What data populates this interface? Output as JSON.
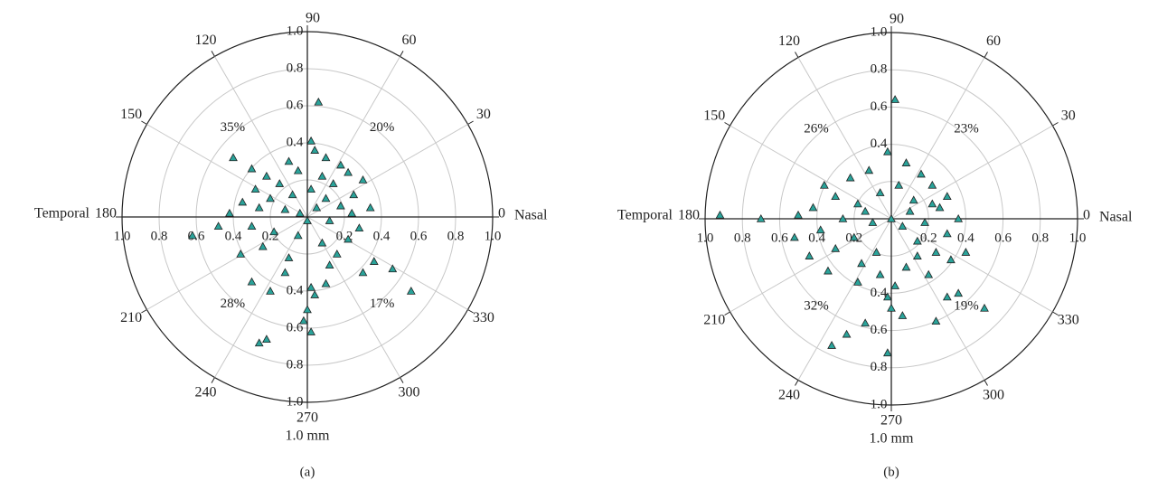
{
  "chart_data": [
    {
      "type": "scatter",
      "coordinate_system": "polar",
      "panel_label": "(a)",
      "angle_labels": [
        "0",
        "30",
        "60",
        "90",
        "120",
        "150",
        "180",
        "210",
        "240",
        "270",
        "300",
        "330"
      ],
      "radial_ticks": [
        "0.2",
        "0.4",
        "0.6",
        "0.8",
        "1.0"
      ],
      "radial_range": [
        0,
        1.0
      ],
      "left_label": "Temporal",
      "right_label": "Nasal",
      "unit_label": "1.0 mm",
      "quadrant_percentages": {
        "q1": "20%",
        "q2": "35%",
        "q3": "28%",
        "q4": "17%"
      },
      "grid": true,
      "marker": "triangle",
      "marker_color": "#2aa39a",
      "points": [
        [
          0.06,
          0.62
        ],
        [
          0.02,
          0.41
        ],
        [
          0.04,
          0.36
        ],
        [
          -0.1,
          0.3
        ],
        [
          0.1,
          0.32
        ],
        [
          0.18,
          0.28
        ],
        [
          -0.4,
          0.32
        ],
        [
          -0.3,
          0.26
        ],
        [
          0.22,
          0.24
        ],
        [
          0.3,
          0.2
        ],
        [
          -0.22,
          0.22
        ],
        [
          -0.05,
          0.25
        ],
        [
          0.08,
          0.22
        ],
        [
          -0.15,
          0.18
        ],
        [
          0.14,
          0.18
        ],
        [
          -0.28,
          0.15
        ],
        [
          0.25,
          0.12
        ],
        [
          -0.08,
          0.12
        ],
        [
          0.02,
          0.15
        ],
        [
          -0.35,
          0.08
        ],
        [
          0.34,
          0.05
        ],
        [
          -0.2,
          0.1
        ],
        [
          0.18,
          0.06
        ],
        [
          -0.12,
          0.04
        ],
        [
          0.05,
          0.05
        ],
        [
          -0.42,
          0.02
        ],
        [
          0.12,
          -0.02
        ],
        [
          -0.3,
          -0.05
        ],
        [
          0.28,
          -0.06
        ],
        [
          -0.18,
          -0.08
        ],
        [
          0.22,
          -0.12
        ],
        [
          -0.05,
          -0.1
        ],
        [
          0.08,
          -0.14
        ],
        [
          -0.24,
          -0.16
        ],
        [
          0.16,
          -0.2
        ],
        [
          -0.1,
          -0.22
        ],
        [
          0.36,
          -0.24
        ],
        [
          -0.48,
          -0.05
        ],
        [
          -0.62,
          -0.1
        ],
        [
          0.3,
          -0.3
        ],
        [
          0.46,
          -0.28
        ],
        [
          0.56,
          -0.4
        ],
        [
          -0.3,
          -0.35
        ],
        [
          -0.2,
          -0.4
        ],
        [
          0.02,
          -0.38
        ],
        [
          0.04,
          -0.42
        ],
        [
          0.0,
          -0.5
        ],
        [
          -0.02,
          -0.56
        ],
        [
          0.02,
          -0.62
        ],
        [
          -0.22,
          -0.66
        ],
        [
          -0.26,
          -0.68
        ],
        [
          0.1,
          -0.36
        ],
        [
          -0.12,
          -0.3
        ],
        [
          0.12,
          -0.26
        ],
        [
          -0.36,
          -0.2
        ],
        [
          0.24,
          0.02
        ],
        [
          -0.26,
          0.05
        ],
        [
          0.1,
          0.1
        ],
        [
          -0.04,
          0.02
        ],
        [
          0.0,
          -0.02
        ]
      ]
    },
    {
      "type": "scatter",
      "coordinate_system": "polar",
      "panel_label": "(b)",
      "angle_labels": [
        "0",
        "30",
        "60",
        "90",
        "120",
        "150",
        "180",
        "210",
        "240",
        "270",
        "300",
        "330"
      ],
      "radial_ticks": [
        "0.2",
        "0.4",
        "0.6",
        "0.8",
        "1.0"
      ],
      "radial_range": [
        0,
        1.0
      ],
      "left_label": "Temporal",
      "right_label": "Nasal",
      "unit_label": "1.0 mm",
      "quadrant_percentages": {
        "q1": "23%",
        "q2": "26%",
        "q3": "32%",
        "q4": "19%"
      },
      "grid": true,
      "marker": "triangle",
      "marker_color": "#2aa39a",
      "points": [
        [
          0.02,
          0.64
        ],
        [
          -0.02,
          0.36
        ],
        [
          0.08,
          0.3
        ],
        [
          -0.12,
          0.26
        ],
        [
          0.16,
          0.24
        ],
        [
          -0.22,
          0.22
        ],
        [
          0.22,
          0.18
        ],
        [
          -0.36,
          0.18
        ],
        [
          0.3,
          0.12
        ],
        [
          -0.3,
          0.12
        ],
        [
          0.04,
          0.18
        ],
        [
          -0.06,
          0.14
        ],
        [
          0.12,
          0.1
        ],
        [
          -0.18,
          0.08
        ],
        [
          0.26,
          0.06
        ],
        [
          -0.42,
          0.06
        ],
        [
          -0.5,
          0.02
        ],
        [
          -0.7,
          0.0
        ],
        [
          -0.92,
          0.02
        ],
        [
          0.36,
          0.0
        ],
        [
          -0.26,
          0.0
        ],
        [
          0.18,
          -0.02
        ],
        [
          -0.1,
          -0.02
        ],
        [
          0.06,
          -0.04
        ],
        [
          -0.38,
          -0.06
        ],
        [
          0.3,
          -0.08
        ],
        [
          -0.2,
          -0.1
        ],
        [
          0.14,
          -0.12
        ],
        [
          -0.3,
          -0.16
        ],
        [
          0.24,
          -0.18
        ],
        [
          -0.08,
          -0.18
        ],
        [
          0.4,
          -0.18
        ],
        [
          -0.44,
          -0.2
        ],
        [
          0.32,
          -0.22
        ],
        [
          -0.16,
          -0.24
        ],
        [
          0.08,
          -0.26
        ],
        [
          -0.34,
          -0.28
        ],
        [
          -0.18,
          -0.34
        ],
        [
          0.02,
          -0.36
        ],
        [
          -0.02,
          -0.42
        ],
        [
          0.0,
          -0.48
        ],
        [
          0.06,
          -0.52
        ],
        [
          -0.14,
          -0.56
        ],
        [
          -0.24,
          -0.62
        ],
        [
          -0.32,
          -0.68
        ],
        [
          0.24,
          -0.55
        ],
        [
          0.3,
          -0.42
        ],
        [
          0.5,
          -0.48
        ],
        [
          0.36,
          -0.4
        ],
        [
          -0.02,
          -0.72
        ],
        [
          0.14,
          -0.2
        ],
        [
          -0.06,
          -0.3
        ],
        [
          0.2,
          -0.3
        ],
        [
          -0.52,
          -0.1
        ],
        [
          0.1,
          0.04
        ],
        [
          -0.14,
          0.04
        ],
        [
          0.0,
          0.0
        ],
        [
          0.22,
          0.08
        ]
      ]
    }
  ],
  "ui": {
    "panel_a": "(a)",
    "panel_b": "(b)"
  }
}
